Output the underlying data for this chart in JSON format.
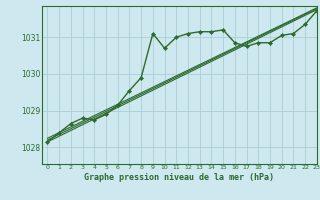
{
  "background_color": "#cde8ef",
  "grid_color": "#a8cdd6",
  "line_color": "#2d6a2d",
  "title": "Graphe pression niveau de la mer (hPa)",
  "xlim": [
    -0.5,
    23
  ],
  "ylim": [
    1027.55,
    1031.85
  ],
  "xticks": [
    0,
    1,
    2,
    3,
    4,
    5,
    6,
    7,
    8,
    9,
    10,
    11,
    12,
    13,
    14,
    15,
    16,
    17,
    18,
    19,
    20,
    21,
    22,
    23
  ],
  "yticks": [
    1028,
    1029,
    1030,
    1031
  ],
  "series": [
    {
      "x": [
        0,
        23
      ],
      "y": [
        1028.15,
        1031.75
      ],
      "has_markers": false,
      "lw": 0.8
    },
    {
      "x": [
        0,
        23
      ],
      "y": [
        1028.2,
        1031.78
      ],
      "has_markers": false,
      "lw": 0.8
    },
    {
      "x": [
        0,
        23
      ],
      "y": [
        1028.25,
        1031.8
      ],
      "has_markers": false,
      "lw": 0.8
    },
    {
      "x": [
        0,
        1,
        2,
        3,
        4,
        5,
        6,
        7,
        8,
        9,
        10,
        11,
        12,
        13,
        14,
        15,
        16,
        17,
        18,
        19,
        20,
        21,
        22,
        23
      ],
      "y": [
        1028.15,
        1028.4,
        1028.65,
        1028.8,
        1028.75,
        1028.9,
        1029.15,
        1029.55,
        1029.9,
        1031.1,
        1030.7,
        1031.0,
        1031.1,
        1031.15,
        1031.15,
        1031.2,
        1030.85,
        1030.75,
        1030.85,
        1030.85,
        1031.05,
        1031.1,
        1031.35,
        1031.72
      ],
      "has_markers": true,
      "lw": 1.0
    }
  ]
}
